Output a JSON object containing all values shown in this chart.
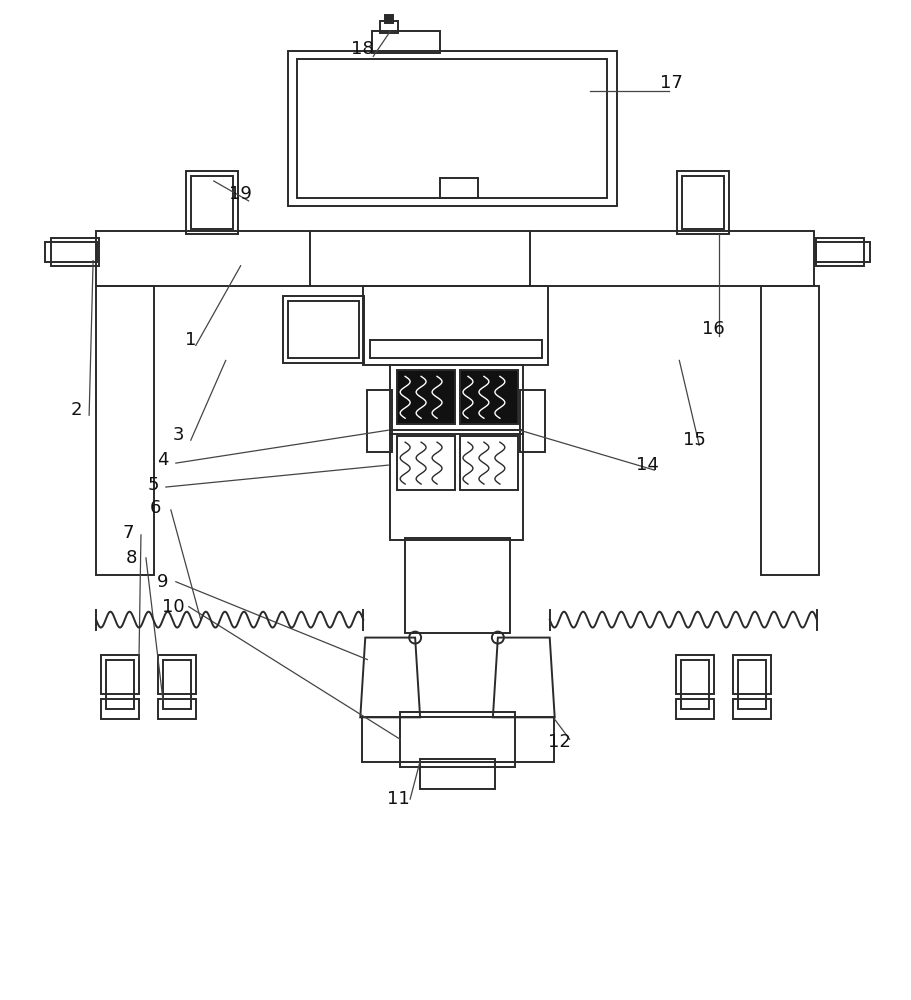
{
  "bg_color": "#ffffff",
  "line_color": "#2a2a2a",
  "lw": 1.4,
  "lw_thin": 0.9,
  "lw_thick": 1.8
}
